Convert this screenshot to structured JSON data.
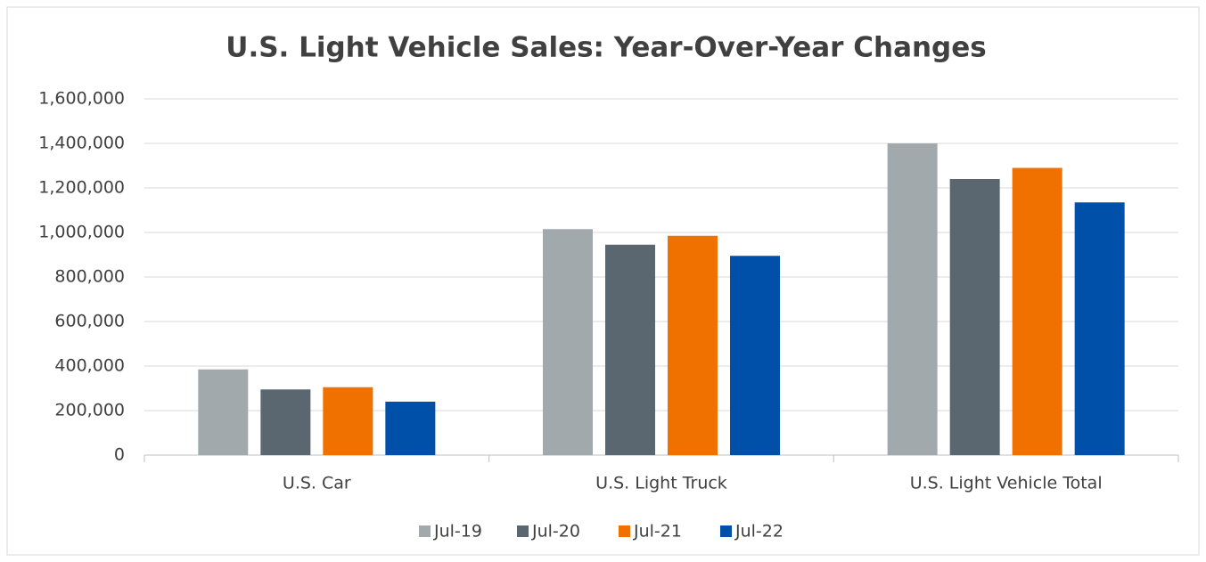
{
  "chart_data": {
    "type": "bar",
    "title": "U.S. Light Vehicle Sales: Year-Over-Year Changes",
    "categories": [
      "U.S. Car",
      "U.S. Light Truck",
      "U.S. Light Vehicle Total"
    ],
    "series": [
      {
        "name": "Jul-19",
        "color": "#a2a9ad",
        "values": [
          385000,
          1015000,
          1400000
        ]
      },
      {
        "name": "Jul-20",
        "color": "#5b6770",
        "values": [
          295000,
          945000,
          1240000
        ]
      },
      {
        "name": "Jul-21",
        "color": "#f07000",
        "values": [
          305000,
          985000,
          1290000
        ]
      },
      {
        "name": "Jul-22",
        "color": "#0050aa",
        "values": [
          240000,
          895000,
          1135000
        ]
      }
    ],
    "ylim": [
      0,
      1600000
    ],
    "yticks": [
      0,
      {
        "value": 200000,
        "label": "200,000"
      },
      {
        "value": 400000,
        "label": "400,000"
      },
      {
        "value": 600000,
        "label": "600,000"
      },
      {
        "value": 800000,
        "label": "800,000"
      },
      {
        "value": 1000000,
        "label": "1,000,000"
      },
      {
        "value": 1200000,
        "label": "1,200,000"
      },
      {
        "value": 1400000,
        "label": "1,400,000"
      },
      {
        "value": 1600000,
        "label": "1,600,000"
      }
    ],
    "grid": true,
    "legend": "bottom"
  }
}
